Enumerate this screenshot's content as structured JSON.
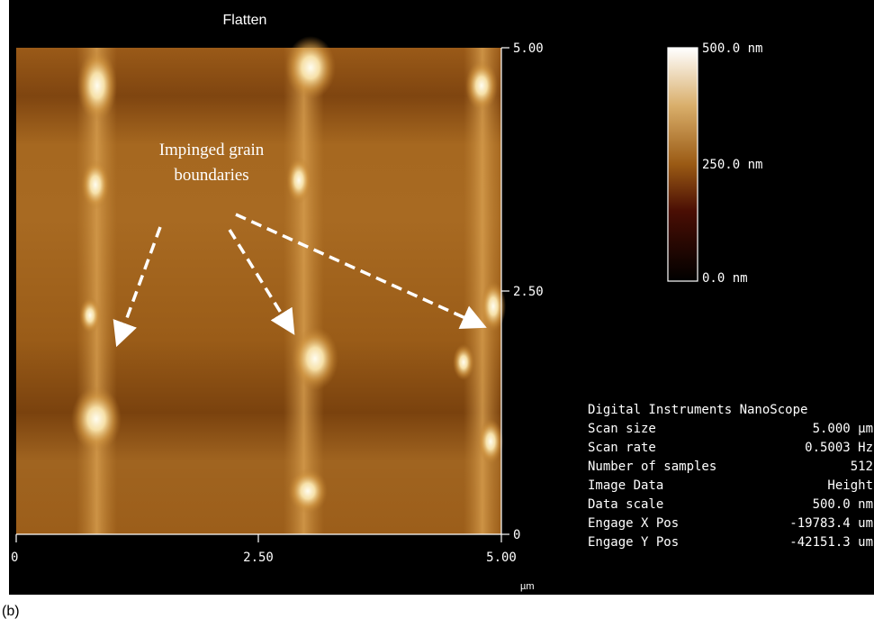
{
  "title": "Flatten",
  "annotation": [
    "Impinged grain",
    "boundaries"
  ],
  "y_axis_labels": [
    "5.00",
    "2.50",
    "0"
  ],
  "x_axis_labels": [
    "0",
    "2.50",
    "5.00"
  ],
  "x_axis_unit": "µm",
  "color_scale_labels": [
    "500.0 nm",
    "250.0 nm",
    "0.0 nm"
  ],
  "info": {
    "header": "Digital Instruments NanoScope",
    "rows": [
      [
        "Scan size",
        "5.000 µm"
      ],
      [
        "Scan rate",
        "0.5003 Hz"
      ],
      [
        "Number of samples",
        "512"
      ],
      [
        "Image Data",
        "Height"
      ],
      [
        "Data scale",
        "500.0 nm"
      ],
      [
        "Engage X Pos",
        "-19783.4 um"
      ],
      [
        "Engage Y Pos",
        "-42151.3 um"
      ]
    ]
  },
  "panel_label": "(b)"
}
